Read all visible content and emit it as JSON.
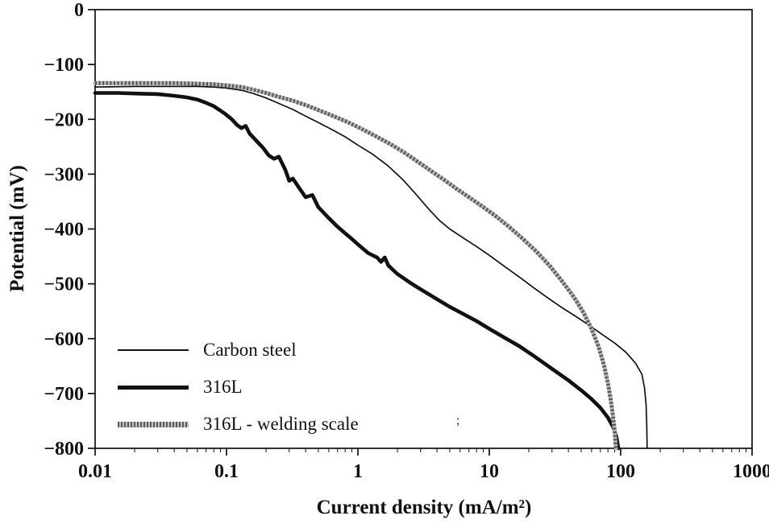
{
  "chart_data": {
    "type": "line",
    "title": "",
    "xlabel": "Current density (mA/m²)",
    "ylabel": "Potential (mV)",
    "x_scale": "log",
    "y_scale": "linear",
    "xlim": [
      0.01,
      1000
    ],
    "ylim": [
      -800,
      0
    ],
    "grid": false,
    "legend_position": "inside-lower-left",
    "frame": true,
    "axis_color": "#111111",
    "x_ticks": [
      {
        "value": 0.01,
        "label": "0.01"
      },
      {
        "value": 0.1,
        "label": "0.1"
      },
      {
        "value": 1,
        "label": "1"
      },
      {
        "value": 10,
        "label": "10"
      },
      {
        "value": 100,
        "label": "100"
      },
      {
        "value": 1000,
        "label": "1000"
      }
    ],
    "y_ticks": [
      {
        "value": 0,
        "label": "0"
      },
      {
        "value": -100,
        "label": "−100"
      },
      {
        "value": -200,
        "label": "−200"
      },
      {
        "value": -300,
        "label": "−300"
      },
      {
        "value": -400,
        "label": "−400"
      },
      {
        "value": -500,
        "label": "−500"
      },
      {
        "value": -600,
        "label": "−600"
      },
      {
        "value": -700,
        "label": "−700"
      },
      {
        "value": -800,
        "label": "−800"
      }
    ],
    "series": [
      {
        "name": "Carbon steel",
        "style": "thin-solid",
        "color": "#111111",
        "width": 1.7,
        "points": [
          [
            0.01,
            -141
          ],
          [
            0.02,
            -140
          ],
          [
            0.04,
            -140
          ],
          [
            0.06,
            -140
          ],
          [
            0.08,
            -141
          ],
          [
            0.1,
            -143
          ],
          [
            0.13,
            -147
          ],
          [
            0.16,
            -153
          ],
          [
            0.2,
            -161
          ],
          [
            0.25,
            -171
          ],
          [
            0.32,
            -182
          ],
          [
            0.4,
            -194
          ],
          [
            0.5,
            -206
          ],
          [
            0.65,
            -220
          ],
          [
            0.8,
            -232
          ],
          [
            1.0,
            -247
          ],
          [
            1.3,
            -264
          ],
          [
            1.7,
            -285
          ],
          [
            2.2,
            -310
          ],
          [
            2.8,
            -338
          ],
          [
            3.5,
            -365
          ],
          [
            4.2,
            -385
          ],
          [
            5.0,
            -400
          ],
          [
            6.5,
            -418
          ],
          [
            8.0,
            -432
          ],
          [
            10,
            -448
          ],
          [
            13,
            -468
          ],
          [
            17,
            -488
          ],
          [
            22,
            -508
          ],
          [
            28,
            -526
          ],
          [
            36,
            -544
          ],
          [
            46,
            -560
          ],
          [
            58,
            -576
          ],
          [
            72,
            -592
          ],
          [
            90,
            -608
          ],
          [
            110,
            -625
          ],
          [
            130,
            -645
          ],
          [
            145,
            -665
          ],
          [
            152,
            -690
          ],
          [
            156,
            -720
          ],
          [
            158,
            -760
          ],
          [
            159,
            -800
          ]
        ]
      },
      {
        "name": "316L",
        "style": "thick-solid",
        "color": "#111111",
        "width": 4.6,
        "points": [
          [
            0.01,
            -152
          ],
          [
            0.015,
            -152
          ],
          [
            0.02,
            -153
          ],
          [
            0.03,
            -154
          ],
          [
            0.04,
            -157
          ],
          [
            0.05,
            -160
          ],
          [
            0.06,
            -164
          ],
          [
            0.07,
            -170
          ],
          [
            0.08,
            -176
          ],
          [
            0.09,
            -184
          ],
          [
            0.1,
            -192
          ],
          [
            0.11,
            -200
          ],
          [
            0.12,
            -210
          ],
          [
            0.13,
            -216
          ],
          [
            0.14,
            -212
          ],
          [
            0.15,
            -226
          ],
          [
            0.17,
            -240
          ],
          [
            0.19,
            -252
          ],
          [
            0.21,
            -266
          ],
          [
            0.23,
            -272
          ],
          [
            0.25,
            -268
          ],
          [
            0.28,
            -292
          ],
          [
            0.3,
            -312
          ],
          [
            0.32,
            -308
          ],
          [
            0.35,
            -322
          ],
          [
            0.4,
            -342
          ],
          [
            0.45,
            -338
          ],
          [
            0.5,
            -360
          ],
          [
            0.6,
            -380
          ],
          [
            0.7,
            -396
          ],
          [
            0.8,
            -408
          ],
          [
            0.9,
            -418
          ],
          [
            1.0,
            -428
          ],
          [
            1.2,
            -444
          ],
          [
            1.4,
            -452
          ],
          [
            1.5,
            -460
          ],
          [
            1.6,
            -452
          ],
          [
            1.7,
            -466
          ],
          [
            1.8,
            -472
          ],
          [
            2.0,
            -482
          ],
          [
            2.5,
            -498
          ],
          [
            3.0,
            -510
          ],
          [
            4.0,
            -528
          ],
          [
            5.0,
            -542
          ],
          [
            6.0,
            -552
          ],
          [
            8.0,
            -568
          ],
          [
            10,
            -582
          ],
          [
            13,
            -598
          ],
          [
            17,
            -614
          ],
          [
            22,
            -632
          ],
          [
            30,
            -655
          ],
          [
            40,
            -676
          ],
          [
            50,
            -694
          ],
          [
            60,
            -710
          ],
          [
            70,
            -726
          ],
          [
            80,
            -744
          ],
          [
            88,
            -762
          ],
          [
            93,
            -780
          ],
          [
            96,
            -800
          ]
        ]
      },
      {
        "name": "316L - welding scale",
        "style": "textured",
        "color": "#b5b5b5",
        "accent": "#555555",
        "width": 5,
        "points": [
          [
            0.01,
            -134
          ],
          [
            0.02,
            -134
          ],
          [
            0.04,
            -134
          ],
          [
            0.06,
            -135
          ],
          [
            0.08,
            -136
          ],
          [
            0.1,
            -138
          ],
          [
            0.13,
            -141
          ],
          [
            0.16,
            -146
          ],
          [
            0.2,
            -152
          ],
          [
            0.25,
            -159
          ],
          [
            0.32,
            -166
          ],
          [
            0.4,
            -174
          ],
          [
            0.5,
            -183
          ],
          [
            0.65,
            -194
          ],
          [
            0.8,
            -203
          ],
          [
            1.0,
            -214
          ],
          [
            1.3,
            -228
          ],
          [
            1.7,
            -243
          ],
          [
            2.2,
            -259
          ],
          [
            2.8,
            -276
          ],
          [
            3.5,
            -292
          ],
          [
            4.5,
            -310
          ],
          [
            5.5,
            -325
          ],
          [
            7.0,
            -342
          ],
          [
            9.0,
            -360
          ],
          [
            11,
            -375
          ],
          [
            14,
            -395
          ],
          [
            18,
            -418
          ],
          [
            23,
            -442
          ],
          [
            29,
            -468
          ],
          [
            36,
            -496
          ],
          [
            44,
            -524
          ],
          [
            52,
            -552
          ],
          [
            60,
            -582
          ],
          [
            68,
            -615
          ],
          [
            75,
            -650
          ],
          [
            81,
            -688
          ],
          [
            86,
            -728
          ],
          [
            90,
            -768
          ],
          [
            92,
            -800
          ]
        ]
      }
    ],
    "stray_mark": ";"
  }
}
